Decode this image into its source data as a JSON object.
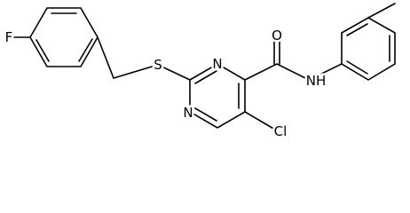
{
  "atom_labels": [
    "F",
    "S",
    "N",
    "N",
    "O",
    "NH",
    "Cl"
  ]
}
